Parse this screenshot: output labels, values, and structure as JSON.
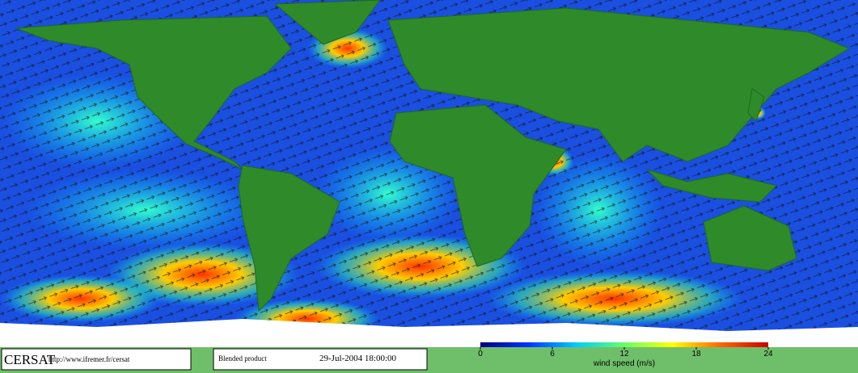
{
  "footer": {
    "logo": "CERSAT",
    "url": "http://www.ifremer.fr/cersat",
    "product": "Blended product",
    "timestamp": "29-Jul-2004 18:00:00"
  },
  "colorbar": {
    "label": "wind speed (m/s)",
    "lim": [
      0,
      24
    ],
    "ticks": [
      0,
      6,
      12,
      18,
      24
    ],
    "colors": [
      "#000080",
      "#0033ff",
      "#00ccff",
      "#66ff66",
      "#ffff00",
      "#ff6600",
      "#cc0000"
    ]
  }
}
